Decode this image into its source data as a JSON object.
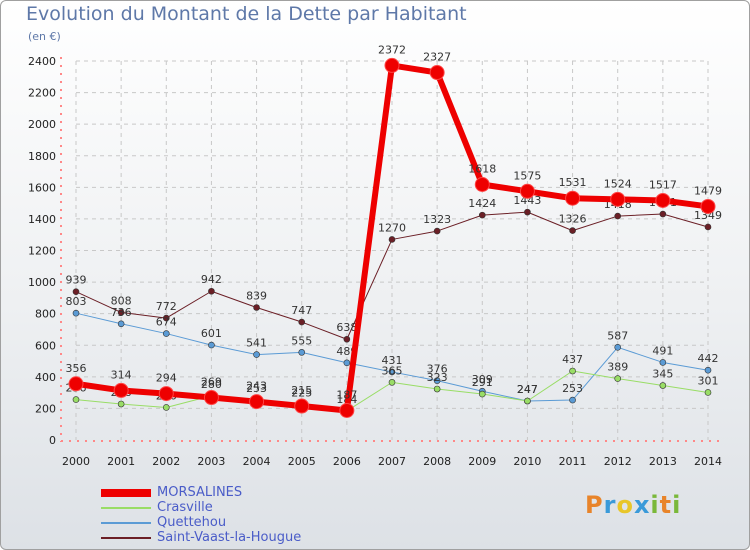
{
  "header": {
    "title": "Evolution du Montant de la Dette par Habitant",
    "unit": "(en €)"
  },
  "logo": {
    "text": "Proxiti",
    "letters": [
      "P",
      "r",
      "o",
      "x",
      "i",
      "t",
      "i"
    ],
    "colors": [
      "#e8842a",
      "#3a9ad9",
      "#e8c62a",
      "#3a9ad9",
      "#7ab83a",
      "#e8842a",
      "#7ab83a"
    ]
  },
  "chart_data": {
    "type": "line",
    "title": "Evolution du Montant de la Dette par Habitant",
    "ylabel": "(en €)",
    "xlabel": "",
    "x": [
      "2000",
      "2001",
      "2002",
      "2003",
      "2004",
      "2005",
      "2006",
      "2007",
      "2008",
      "2009",
      "2010",
      "2011",
      "2012",
      "2013",
      "2014"
    ],
    "ylim": [
      0,
      2400
    ],
    "yticks": [
      0,
      200,
      400,
      600,
      800,
      1000,
      1200,
      1400,
      1600,
      1800,
      2000,
      2200,
      2400
    ],
    "grid": true,
    "legend_position": "bottom-left",
    "series": [
      {
        "name": "Saint-Vaast-la-Hougue",
        "color": "#6b1f26",
        "width": 1,
        "values": [
          939,
          808,
          772,
          942,
          839,
          747,
          638,
          1270,
          1323,
          1424,
          1443,
          1326,
          1418,
          1431,
          1349
        ]
      },
      {
        "name": "Quettehou",
        "color": "#5b9bd5",
        "width": 1,
        "values": [
          803,
          736,
          674,
          601,
          541,
          555,
          489,
          431,
          376,
          309,
          247,
          253,
          587,
          491,
          442
        ]
      },
      {
        "name": "Crasville",
        "color": "#99dd66",
        "width": 1,
        "values": [
          256,
          228,
          206,
          280,
          253,
          225,
          184,
          365,
          323,
          291,
          247,
          437,
          389,
          345,
          301
        ]
      },
      {
        "name": "MORSALINES",
        "color": "#ee0000",
        "width": 6,
        "values": [
          356,
          314,
          294,
          269,
          243,
          215,
          187,
          2372,
          2327,
          1618,
          1575,
          1531,
          1524,
          1517,
          1479
        ]
      }
    ]
  }
}
